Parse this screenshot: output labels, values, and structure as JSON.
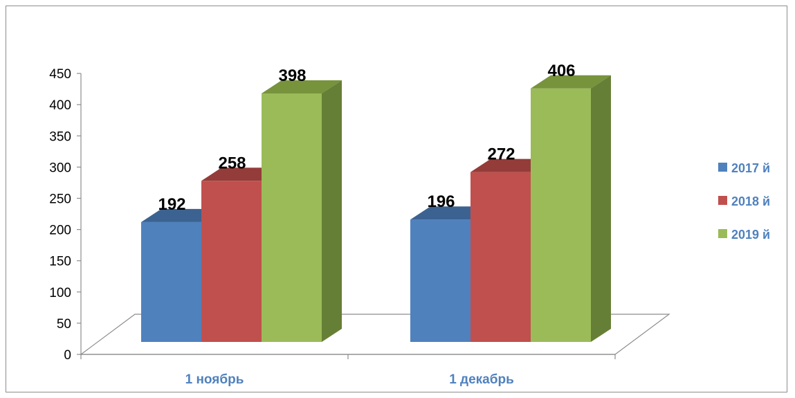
{
  "chart_data": {
    "type": "bar",
    "categories": [
      "1 ноябрь",
      "1 декабрь"
    ],
    "series": [
      {
        "name": "2017 й",
        "values": [
          192,
          196
        ]
      },
      {
        "name": "2018 й",
        "values": [
          258,
          272
        ]
      },
      {
        "name": "2019 й",
        "values": [
          398,
          406
        ]
      }
    ],
    "ylim": [
      0,
      450
    ],
    "yticks": [
      0,
      50,
      100,
      150,
      200,
      250,
      300,
      350,
      400,
      450
    ],
    "colors": {
      "2017 й": {
        "front": "#4f81bd",
        "side": "#385d8a",
        "top": "#3c6291"
      },
      "2018 й": {
        "front": "#c0504d",
        "side": "#8c3836",
        "top": "#943c39"
      },
      "2019 й": {
        "front": "#9bbb59",
        "side": "#667f36",
        "top": "#77933c"
      }
    },
    "category_label_color": "#4f81bd",
    "legend_position": "right",
    "grid": false,
    "data_labels": true
  }
}
